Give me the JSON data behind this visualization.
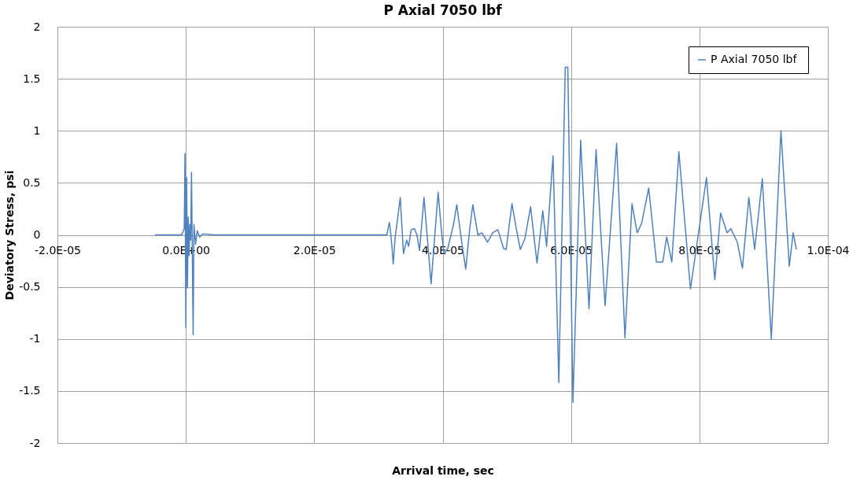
{
  "chart_data": {
    "type": "line",
    "title": "P Axial 7050 lbf",
    "xlabel": "Arrival time, sec",
    "ylabel": "Deviatory Stress, psi",
    "xlim": [
      -2e-05,
      0.0001
    ],
    "xticks": [
      {
        "value": -2e-05,
        "label": "-2.0E-05"
      },
      {
        "value": 0,
        "label": "0.0E+00"
      },
      {
        "value": 2e-05,
        "label": "2.0E-05"
      },
      {
        "value": 4e-05,
        "label": "4.0E-05"
      },
      {
        "value": 6e-05,
        "label": "6.0E-05"
      },
      {
        "value": 8e-05,
        "label": "8.0E-05"
      },
      {
        "value": 0.0001,
        "label": "1.0E-04"
      }
    ],
    "ylim": [
      -2,
      2
    ],
    "yticks": [
      -2,
      -1.5,
      -1,
      -0.5,
      0,
      0.5,
      1,
      1.5,
      2
    ],
    "grid": true,
    "legend": "top right",
    "marker": "none",
    "line_style": "solid",
    "series": [
      {
        "name": "P Axial 7050  lbf",
        "color": "#4f81bd",
        "x": [
          -4.8e-06,
          -6.3e-07,
          -2.5e-07,
          -1.3e-07,
          0,
          1.3e-07,
          2.5e-07,
          3.8e-07,
          5.1e-07,
          6.3e-07,
          7.6e-07,
          8.8e-07,
          1.14e-06,
          1.26e-06,
          1.52e-06,
          1.77e-06,
          2.15e-06,
          2.65e-06,
          4.42e-06,
          3.13e-05,
          3.17e-05,
          3.18e-05,
          3.21e-05,
          3.23e-05,
          3.26e-05,
          3.34e-05,
          3.39e-05,
          3.44e-05,
          3.47e-05,
          3.51e-05,
          3.56e-05,
          3.6e-05,
          3.64e-05,
          3.71e-05,
          3.82e-05,
          3.93e-05,
          3.98e-05,
          4.02e-05,
          4.08e-05,
          4.17e-05,
          4.22e-05,
          4.3e-05,
          4.36e-05,
          4.42e-05,
          4.47e-05,
          4.55e-05,
          4.61e-05,
          4.7e-05,
          4.78e-05,
          4.86e-05,
          4.95e-05,
          4.99e-05,
          5.08e-05,
          5.15e-05,
          5.21e-05,
          5.28e-05,
          5.37e-05,
          5.47e-05,
          5.56e-05,
          5.62e-05,
          5.72e-05,
          5.81e-05,
          5.91e-05,
          5.95e-05,
          6.03e-05,
          6.15e-05,
          6.28e-05,
          6.39e-05,
          6.53e-05,
          6.71e-05,
          6.84e-05,
          6.95e-05,
          7.03e-05,
          7.1e-05,
          7.21e-05,
          7.33e-05,
          7.43e-05,
          7.49e-05,
          7.57e-05,
          7.68e-05,
          7.86e-05,
          8.11e-05,
          8.24e-05,
          8.33e-05,
          8.43e-05,
          8.49e-05,
          8.59e-05,
          8.67e-05,
          8.77e-05,
          8.86e-05,
          8.98e-05,
          9.12e-05,
          9.27e-05,
          9.4e-05,
          9.46e-05,
          9.51e-05
        ],
        "values": [
          0,
          0,
          0.06,
          0.78,
          -0.89,
          0.55,
          -0.51,
          0.17,
          -0.2,
          0.1,
          -0.05,
          0.6,
          -0.96,
          0.1,
          -0.09,
          0.04,
          -0.02,
          0.01,
          0,
          0,
          0.12,
          0.08,
          -0.11,
          -0.28,
          -0.03,
          0.36,
          -0.18,
          -0.05,
          -0.11,
          0.05,
          0.06,
          0,
          -0.15,
          0.36,
          -0.47,
          0.41,
          0.05,
          -0.18,
          -0.13,
          0.1,
          0.29,
          -0.08,
          -0.33,
          0.05,
          0.29,
          0,
          0.02,
          -0.07,
          0.02,
          0.05,
          -0.13,
          -0.14,
          0.3,
          0.05,
          -0.14,
          -0.04,
          0.27,
          -0.27,
          0.23,
          -0.11,
          0.76,
          -1.42,
          1.61,
          1.61,
          -1.61,
          0.91,
          -0.71,
          0.82,
          -0.68,
          0.88,
          -0.99,
          0.3,
          0.02,
          0.11,
          0.45,
          -0.26,
          -0.26,
          -0.02,
          -0.26,
          0.8,
          -0.52,
          0.55,
          -0.43,
          0.21,
          0.02,
          0.06,
          -0.07,
          -0.32,
          0.36,
          -0.14,
          0.54,
          -1.0,
          1.0,
          -0.3,
          0.02,
          -0.14
        ]
      }
    ]
  }
}
